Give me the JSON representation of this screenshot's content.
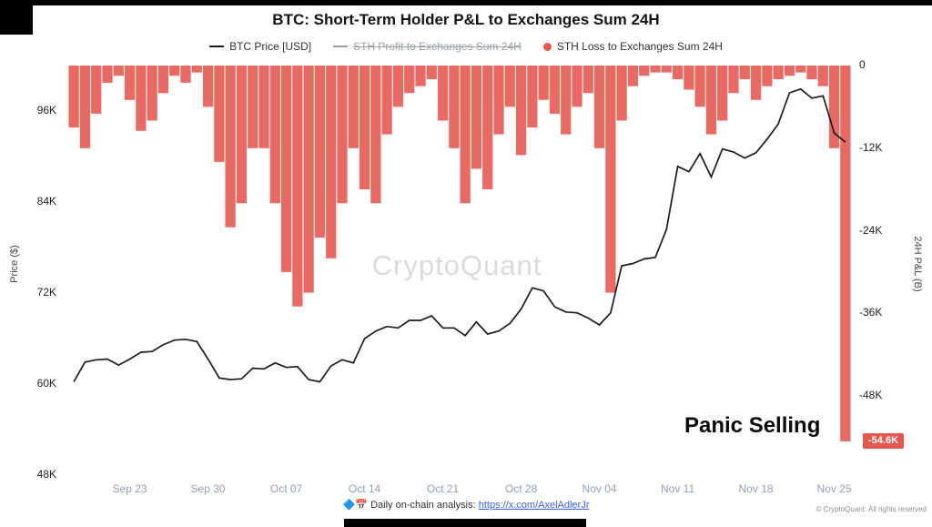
{
  "legend": {
    "items": [
      {
        "label": "BTC Price [USD]",
        "swatch": "line",
        "color": "#1c1c1c",
        "muted": false
      },
      {
        "label": "STH Profit to Exchanges Sum 24H",
        "swatch": "line",
        "color": "#9aa0a6",
        "muted": true
      },
      {
        "label": "STH Loss to Exchanges Sum 24H",
        "swatch": "dot",
        "color": "#e4574f",
        "muted": false
      }
    ]
  },
  "watermark": "CryptoQuant",
  "annotation": "Panic Selling",
  "badge": {
    "label": "-54.6K",
    "value": -54.6,
    "color": "#e4574f"
  },
  "footer": {
    "icons": "🔷📅",
    "text": "Daily on-chain analysis:",
    "link": "https://x.com/AxelAdlerJr",
    "copyright": "© CryptoQuant. All rights reserved"
  },
  "chart_data": {
    "type": "mixed-line-bar",
    "title": "BTC: Short-Term Holder P&L to Exchanges Sum 24H",
    "grid": false,
    "legend_position": "top",
    "x": [
      "Sep 18",
      "Sep 19",
      "Sep 20",
      "Sep 21",
      "Sep 22",
      "Sep 23",
      "Sep 24",
      "Sep 25",
      "Sep 26",
      "Sep 27",
      "Sep 28",
      "Sep 29",
      "Sep 30",
      "Oct 01",
      "Oct 02",
      "Oct 03",
      "Oct 04",
      "Oct 05",
      "Oct 06",
      "Oct 07",
      "Oct 08",
      "Oct 09",
      "Oct 10",
      "Oct 11",
      "Oct 12",
      "Oct 13",
      "Oct 14",
      "Oct 15",
      "Oct 16",
      "Oct 17",
      "Oct 18",
      "Oct 19",
      "Oct 20",
      "Oct 21",
      "Oct 22",
      "Oct 23",
      "Oct 24",
      "Oct 25",
      "Oct 26",
      "Oct 27",
      "Oct 28",
      "Oct 29",
      "Oct 30",
      "Oct 31",
      "Nov 01",
      "Nov 02",
      "Nov 03",
      "Nov 04",
      "Nov 05",
      "Nov 06",
      "Nov 07",
      "Nov 08",
      "Nov 09",
      "Nov 10",
      "Nov 11",
      "Nov 12",
      "Nov 13",
      "Nov 14",
      "Nov 15",
      "Nov 16",
      "Nov 17",
      "Nov 18",
      "Nov 19",
      "Nov 20",
      "Nov 21",
      "Nov 22",
      "Nov 23",
      "Nov 24",
      "Nov 25",
      "Nov 26"
    ],
    "x_ticks": [
      "Sep 23",
      "Sep 30",
      "Oct 07",
      "Oct 14",
      "Oct 21",
      "Oct 28",
      "Nov 04",
      "Nov 11",
      "Nov 18",
      "Nov 25"
    ],
    "left_axis": {
      "title": "Price ($)",
      "unit": "thousand USD",
      "range": [
        48,
        102
      ],
      "ticks": [
        {
          "label": "96K",
          "value": 96
        },
        {
          "label": "84K",
          "value": 84
        },
        {
          "label": "72K",
          "value": 72
        },
        {
          "label": "60K",
          "value": 60
        },
        {
          "label": "48K",
          "value": 48
        }
      ]
    },
    "right_axis": {
      "title": "24H P&L (B)",
      "unit": "K",
      "range": [
        0,
        -59.5
      ],
      "ticks": [
        {
          "label": "0",
          "value": 0
        },
        {
          "label": "-12K",
          "value": -12
        },
        {
          "label": "-24K",
          "value": -24
        },
        {
          "label": "-36K",
          "value": -36
        },
        {
          "label": "-48K",
          "value": -48
        }
      ]
    },
    "series": [
      {
        "name": "BTC Price [USD]",
        "type": "line",
        "axis": "left",
        "color": "#1c1c1c",
        "hidden": false,
        "values": [
          60.3,
          62.9,
          63.2,
          63.3,
          62.5,
          63.3,
          64.2,
          64.3,
          65.2,
          65.8,
          65.9,
          65.6,
          63.3,
          60.8,
          60.6,
          60.7,
          62.1,
          62.0,
          62.8,
          62.2,
          62.3,
          60.6,
          60.3,
          62.4,
          63.2,
          62.8,
          66.0,
          67.0,
          67.6,
          67.4,
          68.4,
          68.4,
          69.0,
          67.4,
          67.4,
          66.4,
          68.2,
          66.6,
          67.0,
          68.0,
          69.9,
          72.7,
          72.3,
          70.2,
          69.5,
          69.4,
          68.7,
          67.8,
          69.4,
          75.6,
          75.9,
          76.5,
          76.7,
          80.4,
          88.7,
          88.0,
          90.4,
          87.3,
          91.0,
          90.6,
          89.8,
          90.5,
          92.3,
          94.3,
          98.4,
          98.9,
          97.7,
          98.0,
          93.1,
          91.9
        ]
      },
      {
        "name": "STH Profit to Exchanges Sum 24H",
        "type": "bar",
        "axis": "right",
        "color": "#9aa0a6",
        "hidden": true,
        "values": []
      },
      {
        "name": "STH Loss to Exchanges Sum 24H",
        "type": "bar",
        "axis": "right",
        "color": "#e4574f",
        "hidden": false,
        "values": [
          -9,
          -12,
          -7,
          -2.5,
          -1.5,
          -5,
          -9.5,
          -8,
          -4,
          -1.5,
          -2.5,
          -1,
          -6,
          -14,
          -23.5,
          -20,
          -12,
          -12,
          -20,
          -30,
          -35,
          -33,
          -25,
          -28,
          -20,
          -12,
          -18,
          -20,
          -10,
          -6,
          -4,
          -3,
          -2,
          -8,
          -12,
          -20,
          -15,
          -18,
          -10,
          -6,
          -13,
          -9,
          -5,
          -7,
          -10,
          -6,
          -4,
          -12,
          -33,
          -8,
          -3,
          -1.5,
          -1,
          -1,
          -2,
          -3.5,
          -6,
          -10,
          -8,
          -4,
          -2,
          -5,
          -3,
          -2,
          -1.5,
          -1,
          -2,
          -3,
          -12,
          -54.6
        ]
      }
    ]
  }
}
